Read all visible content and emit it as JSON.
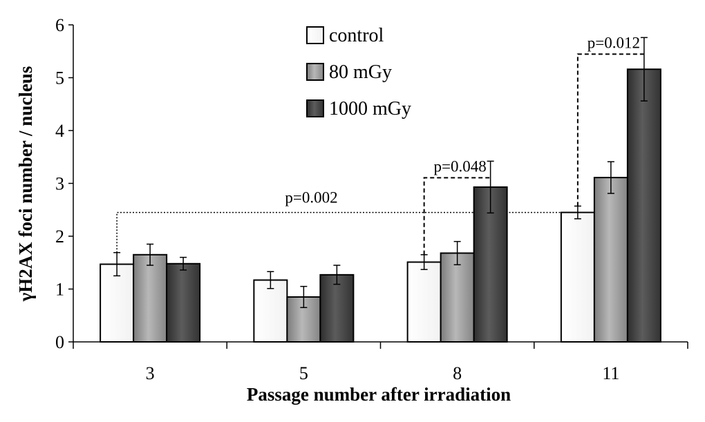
{
  "chart_data": {
    "type": "bar",
    "title": "",
    "xlabel": "Passage number after irradiation",
    "ylabel": "γH2AX foci number / nucleus",
    "ylim": [
      0,
      6
    ],
    "yticks": [
      0,
      1,
      2,
      3,
      4,
      5,
      6
    ],
    "grid": false,
    "legend_position": "top-center",
    "categories": [
      "3",
      "5",
      "8",
      "11"
    ],
    "series": [
      {
        "name": "control",
        "color": "#ffffff",
        "values": [
          1.47,
          1.17,
          1.51,
          2.45
        ],
        "errors": [
          0.22,
          0.16,
          0.14,
          0.12
        ]
      },
      {
        "name": "80 mGy",
        "color": "#9a9a9a",
        "values": [
          1.65,
          0.85,
          1.68,
          3.11
        ],
        "errors": [
          0.2,
          0.2,
          0.22,
          0.3
        ]
      },
      {
        "name": "1000 mGy",
        "color": "#474747",
        "values": [
          1.48,
          1.27,
          2.93,
          5.16
        ],
        "errors": [
          0.12,
          0.18,
          0.49,
          0.6
        ]
      }
    ],
    "annotations": [
      {
        "label": "p=0.002",
        "from": {
          "category": "3",
          "series": "control"
        },
        "to": {
          "category": "11",
          "series": "control"
        },
        "style": "dotted"
      },
      {
        "label": "p=0.048",
        "from": {
          "category": "8",
          "series": "control"
        },
        "to": {
          "category": "8",
          "series": "1000 mGy"
        },
        "style": "dashed"
      },
      {
        "label": "p=0.012",
        "from": {
          "category": "11",
          "series": "control"
        },
        "to": {
          "category": "11",
          "series": "1000 mGy"
        },
        "style": "dashed"
      }
    ]
  }
}
